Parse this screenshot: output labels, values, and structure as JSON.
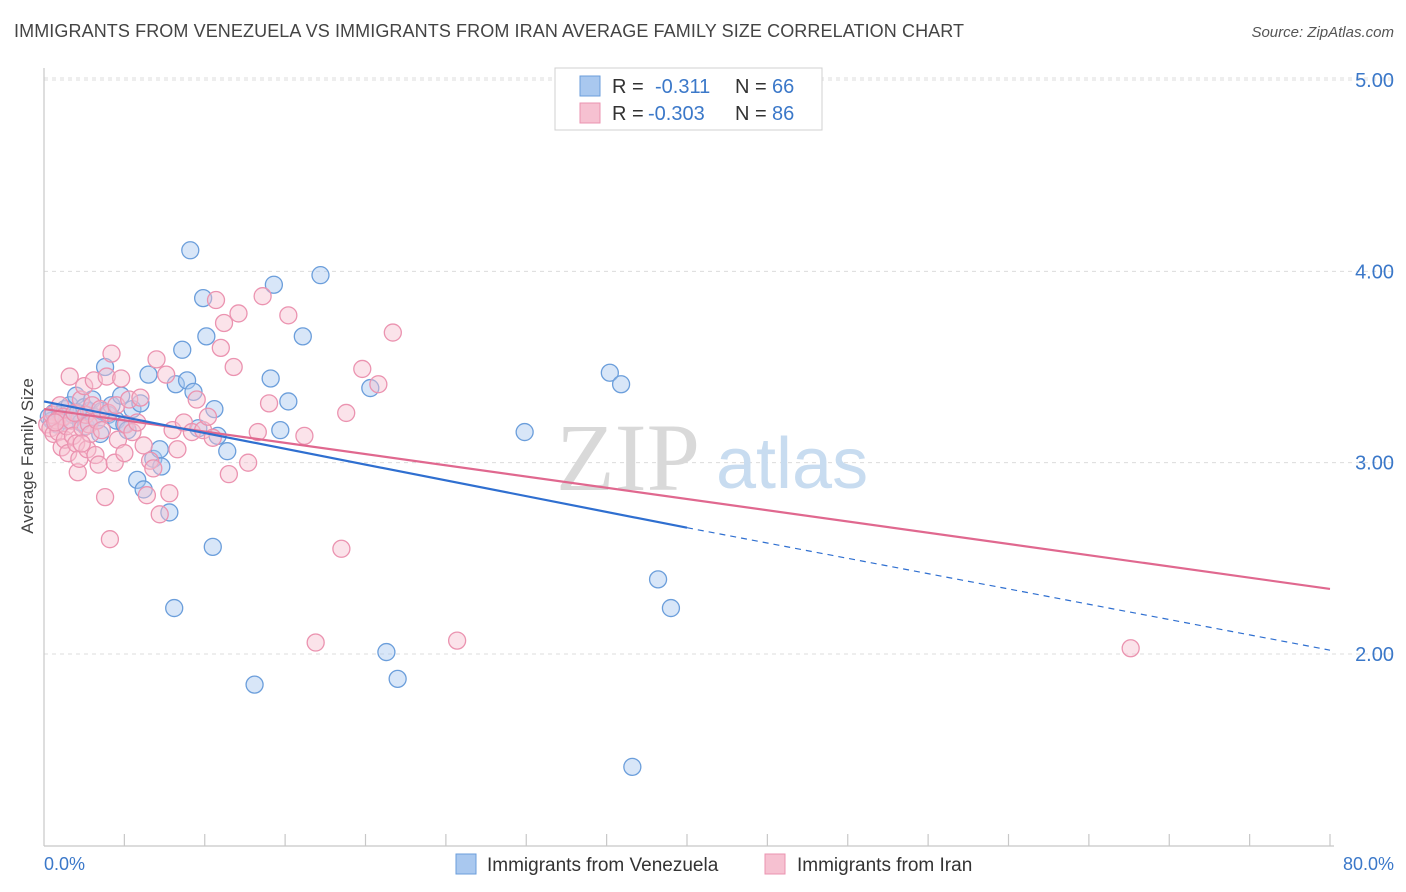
{
  "title": "IMMIGRANTS FROM VENEZUELA VS IMMIGRANTS FROM IRAN AVERAGE FAMILY SIZE CORRELATION CHART",
  "source": "Source: ZipAtlas.com",
  "watermark": {
    "zip": "ZIP",
    "atlas": "atlas"
  },
  "colors": {
    "venezuela_fill": "#a9c8ef",
    "venezuela_stroke": "#6b9edb",
    "venezuela_line": "#2f6fd0",
    "iran_fill": "#f6c1d1",
    "iran_stroke": "#eb93b0",
    "iran_line": "#e0688f",
    "axis_text": "#3b78c9",
    "grid": "#dcdcdc"
  },
  "legend": {
    "rows": [
      {
        "r_label": "R =",
        "r_value": "-0.311",
        "n_label": "N =",
        "n_value": "66"
      },
      {
        "r_label": "R =",
        "r_value": "-0.303",
        "n_label": "N =",
        "n_value": "86"
      }
    ]
  },
  "chart_data": {
    "type": "scatter",
    "title": "IMMIGRANTS FROM VENEZUELA VS IMMIGRANTS FROM IRAN AVERAGE FAMILY SIZE CORRELATION CHART",
    "xlabel": "",
    "ylabel": "Average Family Size",
    "xlim": [
      0,
      80
    ],
    "ylim": [
      1.0,
      5.15
    ],
    "x_tick_labels": [
      "0.0%",
      "80.0%"
    ],
    "y_ticks": [
      2.0,
      3.0,
      4.0,
      5.0
    ],
    "y_tick_labels": [
      "2.00",
      "3.00",
      "4.00",
      "5.00"
    ],
    "grid": true,
    "legend_position": "top-center and bottom",
    "series": [
      {
        "name": "Immigrants from Venezuela",
        "trend": {
          "x0": 0,
          "y0": 3.32,
          "x1": 40,
          "y1": 2.66,
          "dashed_to_x": 80,
          "dashed_to_y": 2.02
        },
        "points": [
          [
            0.3,
            3.24
          ],
          [
            0.5,
            3.22
          ],
          [
            0.6,
            3.26
          ],
          [
            0.8,
            3.2
          ],
          [
            1.0,
            3.25
          ],
          [
            1.1,
            3.23
          ],
          [
            1.3,
            3.28
          ],
          [
            1.4,
            3.22
          ],
          [
            1.6,
            3.3
          ],
          [
            1.8,
            3.25
          ],
          [
            2.0,
            3.35
          ],
          [
            2.1,
            3.26
          ],
          [
            2.3,
            3.21
          ],
          [
            2.5,
            3.29
          ],
          [
            2.6,
            3.19
          ],
          [
            2.8,
            3.27
          ],
          [
            3.0,
            3.33
          ],
          [
            3.1,
            3.24
          ],
          [
            3.3,
            3.22
          ],
          [
            3.5,
            3.15
          ],
          [
            3.6,
            3.27
          ],
          [
            3.8,
            3.5
          ],
          [
            4.0,
            3.25
          ],
          [
            4.2,
            3.3
          ],
          [
            4.5,
            3.22
          ],
          [
            4.8,
            3.35
          ],
          [
            5.0,
            3.2
          ],
          [
            5.2,
            3.17
          ],
          [
            5.5,
            3.28
          ],
          [
            5.8,
            2.91
          ],
          [
            6.0,
            3.31
          ],
          [
            6.2,
            2.86
          ],
          [
            6.5,
            3.46
          ],
          [
            6.8,
            3.02
          ],
          [
            7.2,
            3.07
          ],
          [
            7.3,
            2.98
          ],
          [
            7.8,
            2.74
          ],
          [
            8.1,
            2.24
          ],
          [
            8.2,
            3.41
          ],
          [
            8.6,
            3.59
          ],
          [
            8.9,
            3.43
          ],
          [
            9.1,
            4.11
          ],
          [
            9.3,
            3.37
          ],
          [
            9.6,
            3.18
          ],
          [
            9.9,
            3.86
          ],
          [
            10.1,
            3.66
          ],
          [
            10.5,
            2.56
          ],
          [
            10.6,
            3.28
          ],
          [
            10.8,
            3.14
          ],
          [
            11.4,
            3.06
          ],
          [
            13.1,
            1.84
          ],
          [
            14.1,
            3.44
          ],
          [
            14.3,
            3.93
          ],
          [
            14.7,
            3.17
          ],
          [
            15.2,
            3.32
          ],
          [
            16.1,
            3.66
          ],
          [
            17.2,
            3.98
          ],
          [
            20.3,
            3.39
          ],
          [
            21.3,
            2.01
          ],
          [
            22.0,
            1.87
          ],
          [
            29.9,
            3.16
          ],
          [
            35.2,
            3.47
          ],
          [
            35.9,
            3.41
          ],
          [
            36.6,
            1.41
          ],
          [
            38.2,
            2.39
          ],
          [
            39.0,
            2.24
          ]
        ]
      },
      {
        "name": "Immigrants from Iran",
        "trend": {
          "x0": 0,
          "y0": 3.28,
          "x1": 80,
          "y1": 2.34
        },
        "points": [
          [
            0.2,
            3.2
          ],
          [
            0.4,
            3.18
          ],
          [
            0.5,
            3.25
          ],
          [
            0.6,
            3.15
          ],
          [
            0.8,
            3.22
          ],
          [
            0.9,
            3.16
          ],
          [
            1.0,
            3.3
          ],
          [
            1.1,
            3.08
          ],
          [
            1.2,
            3.24
          ],
          [
            1.3,
            3.12
          ],
          [
            1.4,
            3.19
          ],
          [
            1.5,
            3.05
          ],
          [
            1.6,
            3.45
          ],
          [
            1.7,
            3.22
          ],
          [
            1.8,
            3.14
          ],
          [
            1.9,
            3.26
          ],
          [
            2.0,
            3.1
          ],
          [
            2.1,
            2.95
          ],
          [
            2.2,
            3.02
          ],
          [
            2.3,
            3.33
          ],
          [
            2.4,
            3.18
          ],
          [
            2.5,
            3.4
          ],
          [
            2.6,
            3.25
          ],
          [
            2.7,
            3.07
          ],
          [
            2.8,
            3.2
          ],
          [
            2.9,
            3.15
          ],
          [
            3.0,
            3.3
          ],
          [
            3.1,
            3.43
          ],
          [
            3.2,
            3.04
          ],
          [
            3.3,
            3.22
          ],
          [
            3.4,
            2.99
          ],
          [
            3.5,
            3.28
          ],
          [
            3.6,
            3.17
          ],
          [
            3.8,
            2.82
          ],
          [
            3.9,
            3.45
          ],
          [
            4.0,
            3.26
          ],
          [
            4.1,
            2.6
          ],
          [
            4.2,
            3.57
          ],
          [
            4.4,
            3.0
          ],
          [
            4.5,
            3.3
          ],
          [
            4.6,
            3.12
          ],
          [
            4.8,
            3.44
          ],
          [
            5.0,
            3.05
          ],
          [
            5.1,
            3.2
          ],
          [
            5.3,
            3.33
          ],
          [
            5.5,
            3.16
          ],
          [
            5.8,
            3.21
          ],
          [
            6.0,
            3.34
          ],
          [
            6.2,
            3.09
          ],
          [
            6.4,
            2.83
          ],
          [
            6.6,
            3.01
          ],
          [
            6.8,
            2.97
          ],
          [
            7.0,
            3.54
          ],
          [
            7.2,
            2.73
          ],
          [
            7.6,
            3.46
          ],
          [
            7.8,
            2.84
          ],
          [
            8.0,
            3.17
          ],
          [
            8.3,
            3.07
          ],
          [
            8.7,
            3.21
          ],
          [
            9.2,
            3.16
          ],
          [
            9.5,
            3.33
          ],
          [
            9.9,
            3.17
          ],
          [
            10.2,
            3.24
          ],
          [
            10.5,
            3.13
          ],
          [
            10.7,
            3.85
          ],
          [
            11.0,
            3.6
          ],
          [
            11.2,
            3.73
          ],
          [
            11.5,
            2.94
          ],
          [
            11.8,
            3.5
          ],
          [
            12.1,
            3.78
          ],
          [
            12.7,
            3.0
          ],
          [
            13.3,
            3.16
          ],
          [
            13.6,
            3.87
          ],
          [
            14.0,
            3.31
          ],
          [
            15.2,
            3.77
          ],
          [
            16.2,
            3.14
          ],
          [
            16.9,
            2.06
          ],
          [
            18.5,
            2.55
          ],
          [
            18.8,
            3.26
          ],
          [
            19.8,
            3.49
          ],
          [
            20.8,
            3.41
          ],
          [
            21.7,
            3.68
          ],
          [
            25.7,
            2.07
          ],
          [
            67.6,
            2.03
          ],
          [
            0.7,
            3.21
          ],
          [
            2.35,
            3.1
          ]
        ]
      }
    ]
  }
}
